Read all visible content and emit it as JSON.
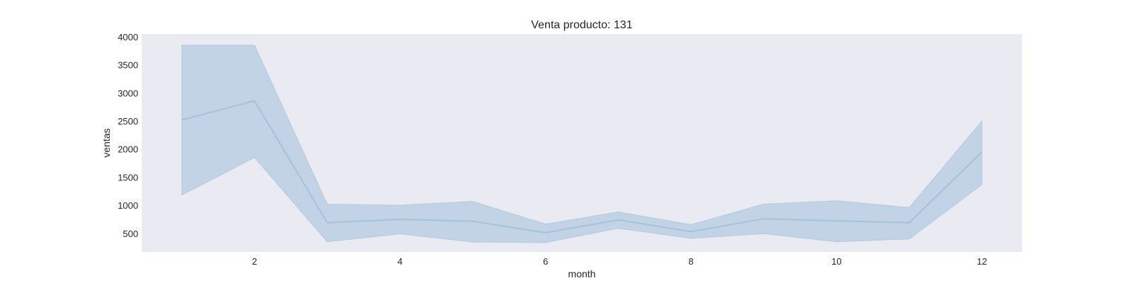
{
  "chart_data": {
    "type": "line",
    "title": "Venta producto: 131",
    "xlabel": "month",
    "ylabel": "ventas",
    "xlim": [
      0.45,
      12.55
    ],
    "ylim": [
      170,
      4050
    ],
    "xticks": [
      2,
      4,
      6,
      8,
      10,
      12
    ],
    "yticks": [
      500,
      1000,
      1500,
      2000,
      2500,
      3000,
      3500,
      4000
    ],
    "grid": false,
    "legend": "none",
    "colors": {
      "plot_background": "#EAEAF2",
      "line": "#A4C2DC",
      "band": "#C2D3E5"
    },
    "series": [
      {
        "x": [
          1,
          2,
          3,
          4,
          5,
          6,
          7,
          8,
          9,
          10,
          11,
          12
        ],
        "values": [
          2520,
          2860,
          690,
          750,
          715,
          510,
          740,
          530,
          760,
          720,
          690,
          1950
        ],
        "ci_lower": [
          1180,
          1850,
          350,
          490,
          345,
          335,
          590,
          410,
          495,
          350,
          400,
          1370
        ],
        "ci_upper": [
          3850,
          3850,
          1020,
          1000,
          1070,
          665,
          880,
          655,
          1020,
          1080,
          960,
          2500
        ]
      }
    ]
  }
}
